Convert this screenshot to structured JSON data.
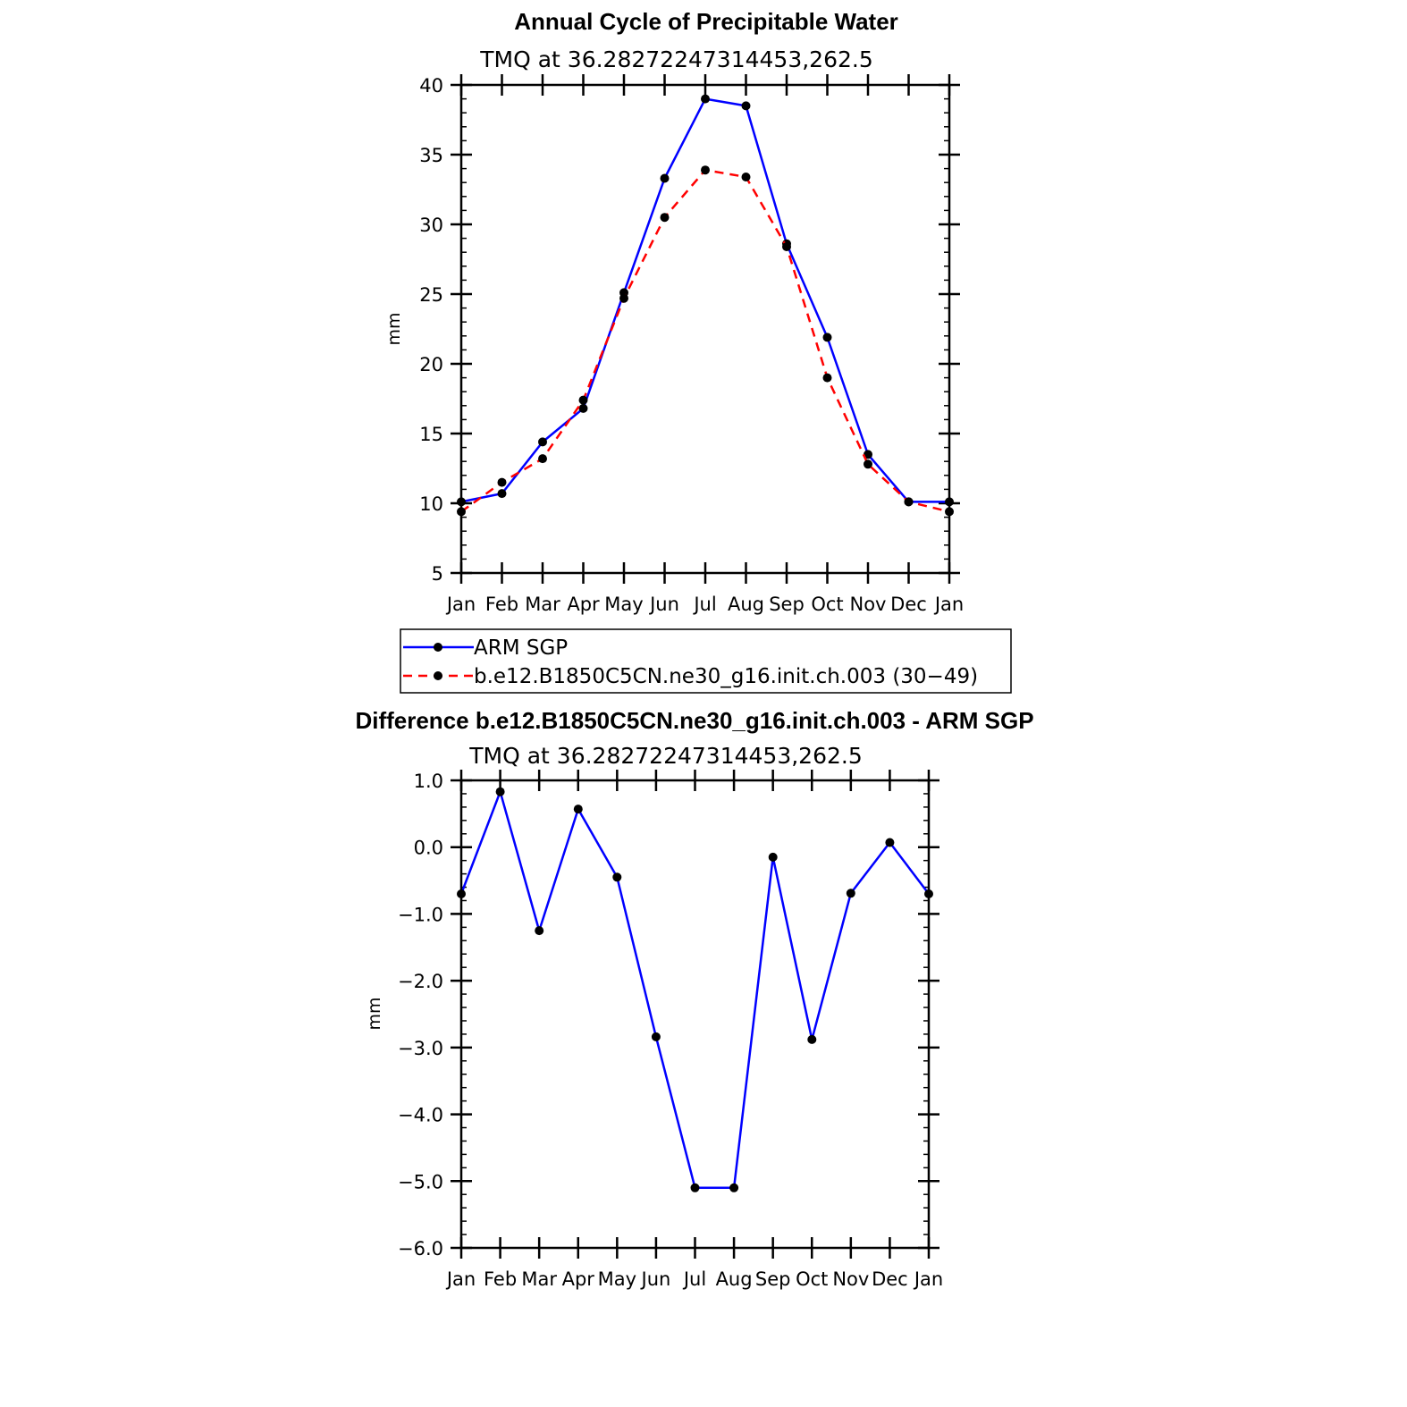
{
  "chart_data": [
    {
      "type": "line",
      "title": "Annual Cycle of Precipitable Water",
      "subtitle": "TMQ  at  36.28272247314453,262.5",
      "xlabel": "",
      "ylabel": "mm",
      "categories": [
        "Jan",
        "Feb",
        "Mar",
        "Apr",
        "May",
        "Jun",
        "Jul",
        "Aug",
        "Sep",
        "Oct",
        "Nov",
        "Dec",
        "Jan"
      ],
      "ylim": [
        5,
        40
      ],
      "yticks": [
        "5",
        "10",
        "15",
        "20",
        "25",
        "30",
        "35",
        "40"
      ],
      "series": [
        {
          "name": "ARM  SGP",
          "color": "#0000ff",
          "style": "solid",
          "values": [
            10.1,
            10.7,
            14.4,
            16.8,
            25.1,
            33.3,
            39.0,
            38.5,
            28.6,
            21.9,
            13.5,
            10.1,
            10.1
          ]
        },
        {
          "name": "b.e12.B1850C5CN.ne30_g16.init.ch.003  (30−49)",
          "color": "#ff0000",
          "style": "dashed",
          "values": [
            9.4,
            11.5,
            13.2,
            17.4,
            24.7,
            30.5,
            33.9,
            33.4,
            28.4,
            19.0,
            12.8,
            10.1,
            9.4
          ]
        }
      ],
      "legend": "bottom"
    },
    {
      "type": "line",
      "title": "Difference b.e12.B1850C5CN.ne30_g16.init.ch.003 - ARM SGP",
      "subtitle": "TMQ  at  36.28272247314453,262.5",
      "xlabel": "",
      "ylabel": "mm",
      "categories": [
        "Jan",
        "Feb",
        "Mar",
        "Apr",
        "May",
        "Jun",
        "Jul",
        "Aug",
        "Sep",
        "Oct",
        "Nov",
        "Dec",
        "Jan"
      ],
      "ylim": [
        -6,
        1
      ],
      "yticks": [
        "−6.0",
        "−5.0",
        "−4.0",
        "−3.0",
        "−2.0",
        "−1.0",
        "0.0",
        "1.0"
      ],
      "series": [
        {
          "name": "difference",
          "color": "#0000ff",
          "style": "solid",
          "values": [
            -0.7,
            0.83,
            -1.25,
            0.57,
            -0.45,
            -2.84,
            -5.1,
            -5.1,
            -0.15,
            -2.88,
            -0.69,
            0.07,
            -0.7
          ]
        }
      ]
    }
  ]
}
